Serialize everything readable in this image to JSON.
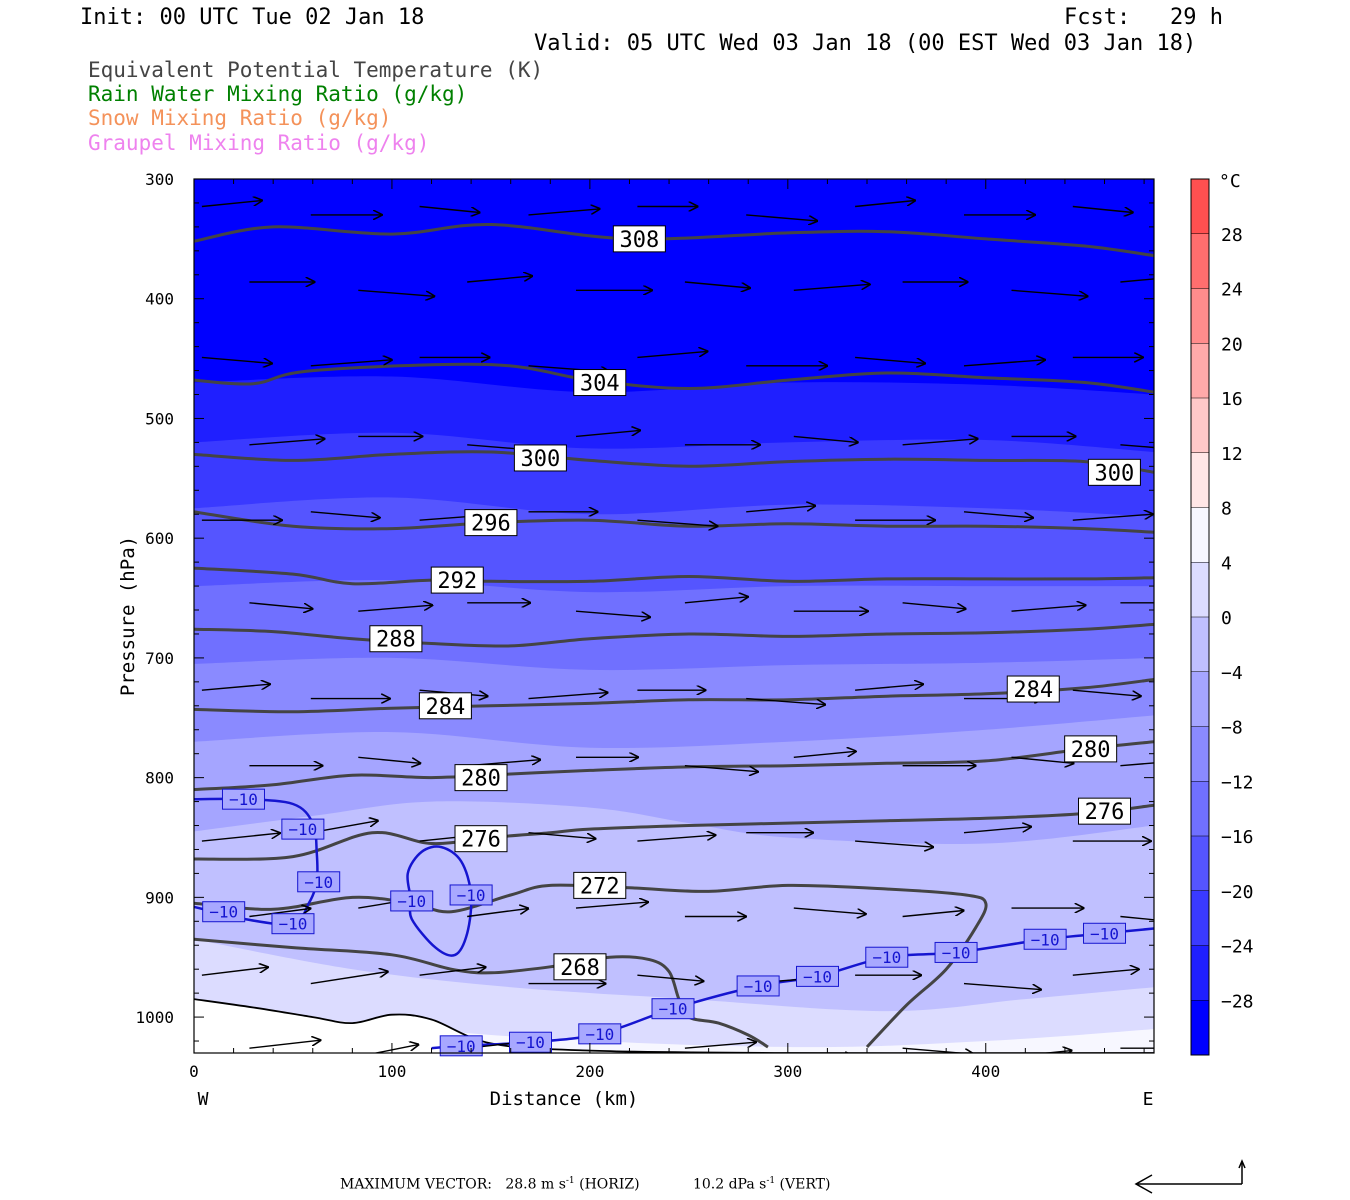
{
  "header": {
    "init": "Init: 00 UTC Tue 02 Jan 18",
    "fcst": "Fcst:   29 h",
    "valid": "Valid: 05 UTC Wed 03 Jan 18 (00 EST Wed 03 Jan 18)"
  },
  "legend": {
    "items": [
      {
        "label": "Equivalent Potential Temperature (K)",
        "color": "#444444"
      },
      {
        "label": "Rain Water Mixing Ratio (g/kg)",
        "color": "#008000"
      },
      {
        "label": "Snow Mixing Ratio (g/kg)",
        "color": "#f4925a"
      },
      {
        "label": "Graupel Mixing Ratio (g/kg)",
        "color": "#ee82ee"
      }
    ]
  },
  "footer": {
    "max_vector_label": "MAXIMUM VECTOR:",
    "horiz_value": "28.8",
    "horiz_unit": "m s",
    "horiz_exp": "-1",
    "horiz_tag": "(HORIZ)",
    "vert_value": "10.2",
    "vert_unit": "dPa s",
    "vert_exp": "-1",
    "vert_tag": "(VERT)"
  },
  "chart_data": {
    "type": "heatmap",
    "xlabel": "Distance (km)",
    "ylabel": "Pressure (hPa)",
    "xlim": [
      0,
      485
    ],
    "ylim": [
      1030,
      300
    ],
    "y_scale": "linear-reversed",
    "x_ticks": [
      0,
      100,
      200,
      300,
      400
    ],
    "y_ticks": [
      300,
      400,
      500,
      600,
      700,
      800,
      900,
      1000
    ],
    "x_end_labels": {
      "left": "W",
      "right": "E"
    },
    "colorbar": {
      "unit": "°C",
      "levels": [
        -32,
        -28,
        -24,
        -20,
        -16,
        -12,
        -8,
        -4,
        0,
        4,
        8,
        12,
        16,
        20,
        24,
        28,
        32
      ],
      "tick_labels": [
        "28",
        "24",
        "20",
        "16",
        "12",
        "8",
        "4",
        "0",
        "−4",
        "−8",
        "−12",
        "−16",
        "−20",
        "−24",
        "−28"
      ],
      "tick_values": [
        28,
        24,
        20,
        16,
        12,
        8,
        4,
        0,
        -4,
        -8,
        -12,
        -16,
        -20,
        -24,
        -28
      ],
      "colors": [
        "#0000ff",
        "#1f1fff",
        "#3a3aff",
        "#5555ff",
        "#7070ff",
        "#8a8aff",
        "#a5a5ff",
        "#c0c0ff",
        "#dcdcff",
        "#f7f7ff",
        "#ffe6e6",
        "#ffc8c8",
        "#ffaaaa",
        "#ff8c8c",
        "#ff6e6e",
        "#ff5050",
        "#ff3232",
        "#ff1414"
      ]
    },
    "theta_e_contours": [
      {
        "label": "308",
        "label_at": [
          225,
          350
        ],
        "points": [
          [
            0,
            352
          ],
          [
            40,
            340
          ],
          [
            100,
            346
          ],
          [
            150,
            338
          ],
          [
            220,
            350
          ],
          [
            300,
            345
          ],
          [
            350,
            344
          ],
          [
            400,
            350
          ],
          [
            450,
            356
          ],
          [
            485,
            364
          ]
        ]
      },
      {
        "label": "304",
        "label_at": [
          205,
          470
        ],
        "points": [
          [
            0,
            468
          ],
          [
            30,
            471
          ],
          [
            60,
            460
          ],
          [
            150,
            455
          ],
          [
            200,
            468
          ],
          [
            250,
            475
          ],
          [
            300,
            468
          ],
          [
            350,
            462
          ],
          [
            400,
            466
          ],
          [
            450,
            470
          ],
          [
            485,
            478
          ]
        ]
      },
      {
        "label": "300",
        "label_at": [
          175,
          533
        ],
        "points": [
          [
            0,
            530
          ],
          [
            50,
            535
          ],
          [
            100,
            530
          ],
          [
            150,
            528
          ],
          [
            200,
            535
          ],
          [
            250,
            540
          ],
          [
            300,
            536
          ],
          [
            350,
            534
          ],
          [
            400,
            535
          ],
          [
            450,
            536
          ],
          [
            485,
            545
          ]
        ]
      },
      {
        "label": "300",
        "label_at": [
          465,
          545
        ],
        "points": []
      },
      {
        "label": "296",
        "label_at": [
          150,
          587
        ],
        "points": [
          [
            0,
            578
          ],
          [
            50,
            590
          ],
          [
            100,
            592
          ],
          [
            150,
            587
          ],
          [
            200,
            585
          ],
          [
            250,
            590
          ],
          [
            300,
            588
          ],
          [
            350,
            590
          ],
          [
            400,
            590
          ],
          [
            450,
            592
          ],
          [
            485,
            595
          ]
        ]
      },
      {
        "label": "292",
        "label_at": [
          133,
          635
        ],
        "points": [
          [
            0,
            625
          ],
          [
            50,
            630
          ],
          [
            80,
            638
          ],
          [
            120,
            635
          ],
          [
            150,
            636
          ],
          [
            200,
            636
          ],
          [
            250,
            632
          ],
          [
            300,
            636
          ],
          [
            350,
            634
          ],
          [
            400,
            634
          ],
          [
            450,
            634
          ],
          [
            485,
            633
          ]
        ]
      },
      {
        "label": "288",
        "label_at": [
          102,
          684
        ],
        "points": [
          [
            0,
            676
          ],
          [
            40,
            678
          ],
          [
            80,
            684
          ],
          [
            120,
            688
          ],
          [
            160,
            690
          ],
          [
            200,
            684
          ],
          [
            250,
            680
          ],
          [
            300,
            682
          ],
          [
            350,
            680
          ],
          [
            400,
            679
          ],
          [
            450,
            676
          ],
          [
            485,
            672
          ]
        ]
      },
      {
        "label": "284",
        "label_at": [
          127,
          740
        ],
        "points": [
          [
            0,
            743
          ],
          [
            50,
            745
          ],
          [
            100,
            742
          ],
          [
            150,
            740
          ],
          [
            200,
            738
          ],
          [
            250,
            735
          ],
          [
            300,
            735
          ],
          [
            350,
            732
          ],
          [
            400,
            730
          ],
          [
            450,
            725
          ],
          [
            485,
            718
          ]
        ]
      },
      {
        "label": "284",
        "label_at": [
          424,
          726
        ],
        "points": []
      },
      {
        "label": "280",
        "label_at": [
          145,
          800
        ],
        "points": [
          [
            0,
            810
          ],
          [
            40,
            806
          ],
          [
            80,
            798
          ],
          [
            120,
            800
          ],
          [
            160,
            797
          ],
          [
            200,
            794
          ],
          [
            250,
            791
          ],
          [
            300,
            790
          ],
          [
            350,
            788
          ],
          [
            400,
            786
          ],
          [
            450,
            776
          ],
          [
            485,
            770
          ]
        ]
      },
      {
        "label": "280",
        "label_at": [
          453,
          776
        ],
        "points": []
      },
      {
        "label": "276",
        "label_at": [
          145,
          851
        ],
        "points": [
          [
            0,
            868
          ],
          [
            50,
            866
          ],
          [
            90,
            846
          ],
          [
            120,
            855
          ],
          [
            150,
            850
          ],
          [
            180,
            846
          ],
          [
            200,
            843
          ],
          [
            250,
            840
          ],
          [
            300,
            838
          ],
          [
            350,
            836
          ],
          [
            400,
            834
          ],
          [
            450,
            830
          ],
          [
            485,
            823
          ]
        ]
      },
      {
        "label": "276",
        "label_at": [
          460,
          828
        ],
        "points": []
      },
      {
        "label": "272",
        "label_at": [
          205,
          890
        ],
        "points": [
          [
            0,
            905
          ],
          [
            40,
            910
          ],
          [
            80,
            900
          ],
          [
            110,
            905
          ],
          [
            130,
            912
          ],
          [
            160,
            898
          ],
          [
            180,
            890
          ],
          [
            220,
            892
          ],
          [
            260,
            895
          ],
          [
            300,
            890
          ],
          [
            350,
            893
          ],
          [
            390,
            898
          ],
          [
            400,
            905
          ],
          [
            395,
            925
          ],
          [
            380,
            960
          ],
          [
            360,
            990
          ],
          [
            340,
            1025
          ]
        ]
      },
      {
        "label": "268",
        "label_at": [
          195,
          958
        ],
        "points": [
          [
            0,
            935
          ],
          [
            50,
            942
          ],
          [
            100,
            948
          ],
          [
            130,
            960
          ],
          [
            150,
            963
          ],
          [
            180,
            958
          ],
          [
            210,
            950
          ],
          [
            230,
            952
          ],
          [
            240,
            962
          ],
          [
            245,
            985
          ],
          [
            250,
            1000
          ],
          [
            265,
            1005
          ],
          [
            280,
            1015
          ],
          [
            290,
            1025
          ]
        ]
      }
    ],
    "temperature_minus10_contour": {
      "label": "−10",
      "label_positions": [
        [
          25,
          818
        ],
        [
          55,
          843
        ],
        [
          63,
          887
        ],
        [
          15,
          912
        ],
        [
          50,
          922
        ],
        [
          110,
          903
        ],
        [
          140,
          898
        ],
        [
          135,
          1024
        ],
        [
          170,
          1021
        ],
        [
          205,
          1014
        ],
        [
          242,
          993
        ],
        [
          285,
          974
        ],
        [
          315,
          966
        ],
        [
          350,
          950
        ],
        [
          385,
          946
        ],
        [
          430,
          935
        ],
        [
          460,
          930
        ]
      ]
    },
    "wind_vectors_note": "horizontal-vertical circulation vectors, mostly west-to-east",
    "max_vector": {
      "horiz": 28.8,
      "horiz_unit": "m s-1",
      "vert": 10.2,
      "vert_unit": "dPa s-1"
    }
  }
}
